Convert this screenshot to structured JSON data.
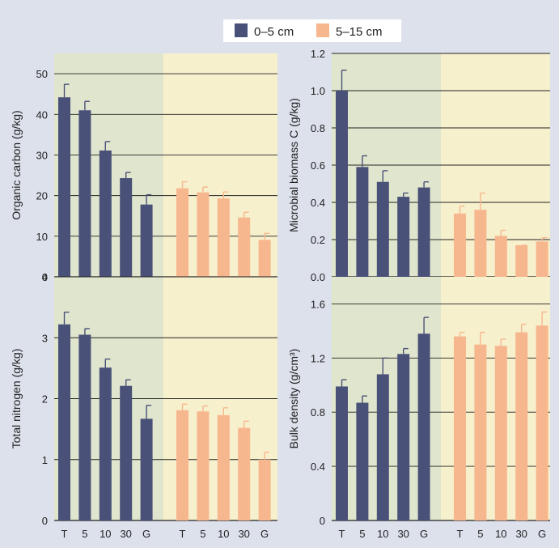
{
  "legend": {
    "items": [
      {
        "label": "0–5 cm",
        "color": "#4a5178"
      },
      {
        "label": "5–15 cm",
        "color": "#f7b78e"
      }
    ]
  },
  "colors": {
    "background": "#dde1ec",
    "panel_left": "#e0e6cd",
    "panel_right": "#f7f0cd",
    "series_0_5": "#4a5178",
    "series_5_15": "#f7b78e",
    "grid": "#222222"
  },
  "chart_data": [
    {
      "type": "bar",
      "ylabel": "Organic carbon (g/kg)",
      "ylim": [
        0,
        55
      ],
      "yticks": [
        0,
        10,
        20,
        30,
        40,
        50
      ],
      "ytick_labels": [
        "0",
        "10",
        "20",
        "30",
        "40",
        "50"
      ],
      "categories": [
        "T",
        "5",
        "10",
        "30",
        "G"
      ],
      "show_xticks": false,
      "grid": true,
      "series": [
        {
          "name": "0–5 cm",
          "values": [
            44.2,
            41.0,
            31.1,
            24.3,
            17.8
          ],
          "errors": [
            3.2,
            2.2,
            2.2,
            1.4,
            2.4
          ]
        },
        {
          "name": "5–15 cm",
          "values": [
            21.8,
            20.8,
            19.3,
            14.6,
            9.1
          ],
          "errors": [
            1.6,
            1.3,
            1.6,
            1.3,
            1.6
          ]
        }
      ]
    },
    {
      "type": "bar",
      "ylabel": "Microbial biomass C (g/kg)",
      "ylim": [
        0,
        1.2
      ],
      "yticks": [
        0,
        0.2,
        0.4,
        0.6,
        0.8,
        1.0,
        1.2
      ],
      "ytick_labels": [
        "0.0",
        "0.2",
        "0.4",
        "0.6",
        "0.8",
        "1.0",
        "1.2"
      ],
      "categories": [
        "T",
        "5",
        "10",
        "30",
        "G"
      ],
      "show_xticks": false,
      "grid": true,
      "series": [
        {
          "name": "0–5 cm",
          "values": [
            1.0,
            0.59,
            0.51,
            0.43,
            0.48
          ],
          "errors": [
            0.11,
            0.06,
            0.06,
            0.02,
            0.03
          ]
        },
        {
          "name": "5–15 cm",
          "values": [
            0.34,
            0.36,
            0.22,
            0.17,
            0.19
          ],
          "errors": [
            0.04,
            0.09,
            0.03,
            0.0,
            0.02
          ]
        }
      ]
    },
    {
      "type": "bar",
      "ylabel": "Total nitrogen  (g/kg)",
      "ylim": [
        0,
        4
      ],
      "yticks": [
        0,
        1,
        2,
        3,
        4
      ],
      "ytick_labels": [
        "0",
        "1",
        "2",
        "3",
        "4"
      ],
      "categories": [
        "T",
        "5",
        "10",
        "30",
        "G"
      ],
      "show_xticks": true,
      "grid": true,
      "series": [
        {
          "name": "0–5 cm",
          "values": [
            3.22,
            3.05,
            2.51,
            2.21,
            1.67
          ],
          "errors": [
            0.2,
            0.1,
            0.14,
            0.1,
            0.22
          ]
        },
        {
          "name": "5–15 cm",
          "values": [
            1.81,
            1.79,
            1.73,
            1.52,
            1.0
          ],
          "errors": [
            0.1,
            0.09,
            0.12,
            0.11,
            0.12
          ]
        }
      ]
    },
    {
      "type": "bar",
      "ylabel": "Bulk density (g/cm³)",
      "ylim": [
        0,
        1.8
      ],
      "yticks": [
        0,
        0.4,
        0.8,
        1.2,
        1.6
      ],
      "ytick_labels": [
        "0",
        "0.4",
        "0.8",
        "1.2",
        "1.6"
      ],
      "categories": [
        "T",
        "5",
        "10",
        "30",
        "G"
      ],
      "show_xticks": true,
      "grid": true,
      "series": [
        {
          "name": "0–5 cm",
          "values": [
            0.99,
            0.87,
            1.08,
            1.23,
            1.38
          ],
          "errors": [
            0.05,
            0.05,
            0.12,
            0.04,
            0.12
          ]
        },
        {
          "name": "5–15 cm",
          "values": [
            1.36,
            1.3,
            1.29,
            1.39,
            1.44
          ],
          "errors": [
            0.03,
            0.09,
            0.05,
            0.06,
            0.1
          ]
        }
      ]
    }
  ]
}
